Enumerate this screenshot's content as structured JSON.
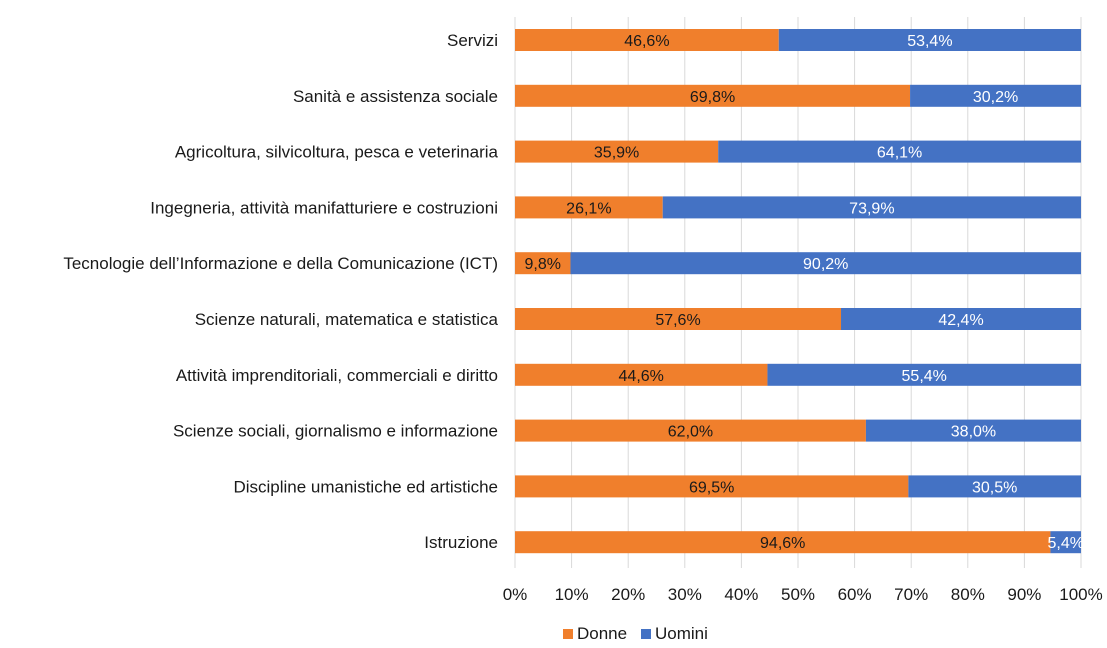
{
  "chart_data": {
    "type": "bar",
    "orientation": "horizontal",
    "stacked": "percent",
    "categories": [
      "Servizi",
      "Sanità e assistenza sociale",
      "Agricoltura, silvicoltura, pesca e veterinaria",
      "Ingegneria, attività manifatturiere e costruzioni",
      "Tecnologie dell’Informazione e della Comunicazione (ICT)",
      "Scienze naturali, matematica e statistica",
      "Attività imprenditoriali, commerciali e diritto",
      "Scienze sociali, giornalismo e informazione",
      "Discipline umanistiche ed artistiche",
      "Istruzione"
    ],
    "series": [
      {
        "name": "Donne",
        "color": "#F07F2C",
        "label_color": "#1a1a1a",
        "values": [
          46.6,
          69.8,
          35.9,
          26.1,
          9.8,
          57.6,
          44.6,
          62.0,
          69.5,
          94.6
        ],
        "labels": [
          "46,6%",
          "69,8%",
          "35,9%",
          "26,1%",
          "9,8%",
          "57,6%",
          "44,6%",
          "62,0%",
          "69,5%",
          "94,6%"
        ]
      },
      {
        "name": "Uomini",
        "color": "#4472C4",
        "label_color": "#ffffff",
        "values": [
          53.4,
          30.2,
          64.1,
          73.9,
          90.2,
          42.4,
          55.4,
          38.0,
          30.5,
          5.4
        ],
        "labels": [
          "53,4%",
          "30,2%",
          "64,1%",
          "73,9%",
          "90,2%",
          "42,4%",
          "55,4%",
          "38,0%",
          "30,5%",
          "5,4%"
        ]
      }
    ],
    "xlim": [
      0,
      100
    ],
    "x_ticks": [
      "0%",
      "10%",
      "20%",
      "30%",
      "40%",
      "50%",
      "60%",
      "70%",
      "80%",
      "90%",
      "100%"
    ],
    "grid": true,
    "legend_position": "bottom",
    "title": "",
    "xlabel": "",
    "ylabel": ""
  }
}
